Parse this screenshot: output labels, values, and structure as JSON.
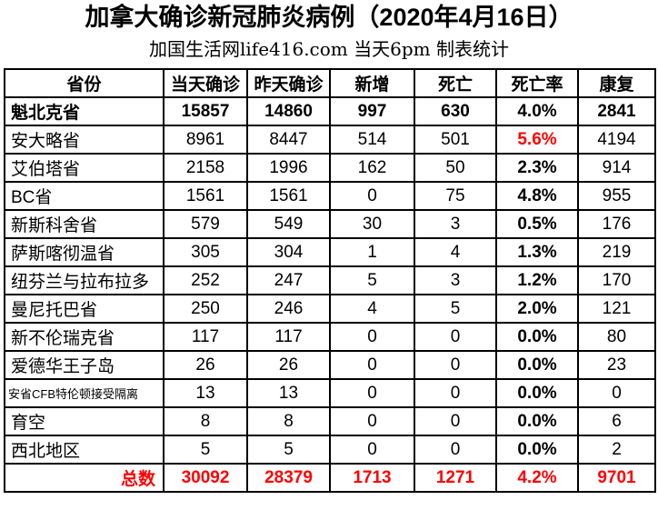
{
  "title": "加拿大确诊新冠肺炎病例（2020年4月16日）",
  "subtitle": "加国生活网life416.com 当天6pm 制表统计",
  "colors": {
    "accent_red": "#FF0000",
    "text": "#000000",
    "border": "#000000",
    "background": "#FFFFFF"
  },
  "chart_data": {
    "type": "table",
    "title": "加拿大确诊新冠肺炎病例（2020年4月16日）",
    "subtitle": "加国生活网life416.com 当天6pm 制表统计",
    "columns": [
      "省份",
      "当天确诊",
      "昨天确诊",
      "新增",
      "死亡",
      "死亡率",
      "康复"
    ],
    "rows": [
      {
        "province": "魁北克省",
        "today": "15857",
        "yesterday": "14860",
        "new": "997",
        "deaths": "630",
        "rate": "4.0%",
        "recovered": "2841",
        "bold": true,
        "rate_red": false,
        "small": false
      },
      {
        "province": "安大略省",
        "today": "8961",
        "yesterday": "8447",
        "new": "514",
        "deaths": "501",
        "rate": "5.6%",
        "recovered": "4194",
        "bold": false,
        "rate_red": true,
        "small": false
      },
      {
        "province": "艾伯塔省",
        "today": "2158",
        "yesterday": "1996",
        "new": "162",
        "deaths": "50",
        "rate": "2.3%",
        "recovered": "914",
        "bold": false,
        "rate_red": false,
        "small": false
      },
      {
        "province": "BC省",
        "today": "1561",
        "yesterday": "1561",
        "new": "0",
        "deaths": "75",
        "rate": "4.8%",
        "recovered": "955",
        "bold": false,
        "rate_red": false,
        "small": false
      },
      {
        "province": "新斯科舍省",
        "today": "579",
        "yesterday": "549",
        "new": "30",
        "deaths": "3",
        "rate": "0.5%",
        "recovered": "176",
        "bold": false,
        "rate_red": false,
        "small": false
      },
      {
        "province": "萨斯喀彻温省",
        "today": "305",
        "yesterday": "304",
        "new": "1",
        "deaths": "4",
        "rate": "1.3%",
        "recovered": "219",
        "bold": false,
        "rate_red": false,
        "small": false
      },
      {
        "province": "纽芬兰与拉布拉多",
        "today": "252",
        "yesterday": "247",
        "new": "5",
        "deaths": "3",
        "rate": "1.2%",
        "recovered": "170",
        "bold": false,
        "rate_red": false,
        "small": false
      },
      {
        "province": "曼尼托巴省",
        "today": "250",
        "yesterday": "246",
        "new": "4",
        "deaths": "5",
        "rate": "2.0%",
        "recovered": "121",
        "bold": false,
        "rate_red": false,
        "small": false
      },
      {
        "province": "新不伦瑞克省",
        "today": "117",
        "yesterday": "117",
        "new": "0",
        "deaths": "0",
        "rate": "0.0%",
        "recovered": "80",
        "bold": false,
        "rate_red": false,
        "small": false
      },
      {
        "province": "爱德华王子岛",
        "today": "26",
        "yesterday": "26",
        "new": "0",
        "deaths": "0",
        "rate": "0.0%",
        "recovered": "23",
        "bold": false,
        "rate_red": false,
        "small": false
      },
      {
        "province": "安省CFB特伦顿接受隔离",
        "today": "13",
        "yesterday": "13",
        "new": "0",
        "deaths": "0",
        "rate": "0.0%",
        "recovered": "0",
        "bold": false,
        "rate_red": false,
        "small": true
      },
      {
        "province": "育空",
        "today": "8",
        "yesterday": "8",
        "new": "0",
        "deaths": "0",
        "rate": "0.0%",
        "recovered": "6",
        "bold": false,
        "rate_red": false,
        "small": false
      },
      {
        "province": "西北地区",
        "today": "5",
        "yesterday": "5",
        "new": "0",
        "deaths": "0",
        "rate": "0.0%",
        "recovered": "2",
        "bold": false,
        "rate_red": false,
        "small": false
      }
    ],
    "totals": {
      "label": "总数",
      "today": "30092",
      "yesterday": "28379",
      "new": "1713",
      "deaths": "1271",
      "rate": "4.2%",
      "recovered": "9701"
    }
  }
}
